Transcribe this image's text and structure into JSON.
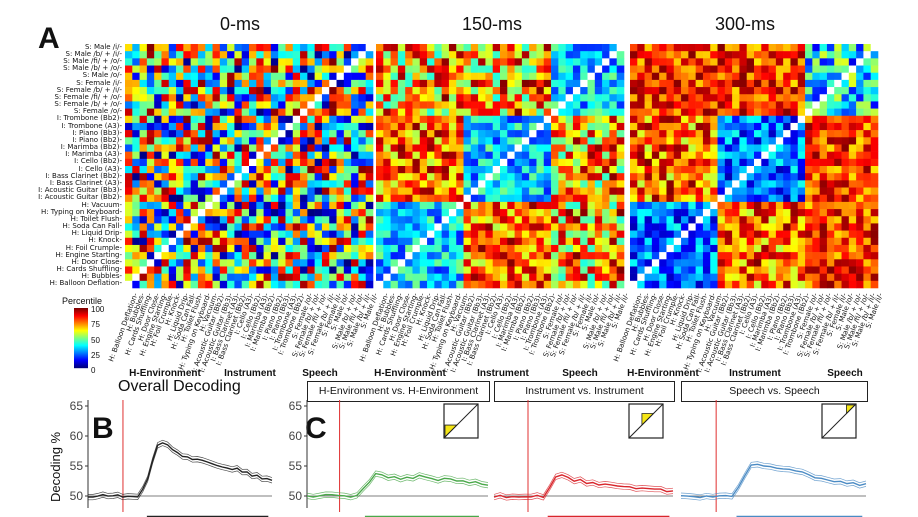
{
  "panel_a_label": "A",
  "panel_b_label": "B",
  "panel_c_label": "C",
  "matrix_titles": [
    "0-ms",
    "150-ms",
    "300-ms"
  ],
  "stimuli": [
    "S: Male /i/-",
    "S: Male /b/ + /i/-",
    "S: Male /fi/ + /o/-",
    "S: Male /b/ + /o/-",
    "S: Male /o/-",
    "S: Female /i/-",
    "S: Female /b/ + /i/-",
    "S: Female /fi/ + /o/-",
    "S: Female /b/ + /o/-",
    "S: Female /o/-",
    "I: Trombone (Bb2)-",
    "I: Trombone (A3)-",
    "I: Piano (Bb3)-",
    "I: Piano (Bb2)-",
    "I: Marimba (Bb2)-",
    "I: Marimba (A3)-",
    "I: Cello (Bb2)-",
    "I: Cello (A3)-",
    "I: Bass Clarinet (Bb2)-",
    "I: Bass Clarinet (A3)-",
    "I: Acoustic Guitar (Bb3)-",
    "I: Acoustic Guitar (Bb2)-",
    "H: Vacuum-",
    "H: Typing on Keyboard-",
    "H: Toilet Flush-",
    "H: Soda Can Fall-",
    "H: Liquid Drip-",
    "H: Knock-",
    "H: Foil Crumple-",
    "H: Engine Starting-",
    "H: Door Close-",
    "H: Cards Shuffling-",
    "H: Bubbles-",
    "H: Balloon Deflation-"
  ],
  "categories": [
    "H-Environment",
    "Instrument",
    "Speech"
  ],
  "legend": {
    "title": "Percentile",
    "ticks": [
      "100",
      "75",
      "50",
      "25",
      "0"
    ]
  },
  "overall_title": "Overall Decoding",
  "y_axis_label": "Decoding %",
  "subplot_titles": [
    "H-Environment vs. H-Environment",
    "Instrument vs. Instrument",
    "Speech vs. Speech"
  ],
  "colors": {
    "overall": "#222222",
    "henv": "#4aa84a",
    "instrument": "#d8262c",
    "speech": "#4b8bc4",
    "onset": "#e03030",
    "triangle": "#f5e616"
  },
  "chart_data": [
    {
      "type": "heatmap",
      "panels": [
        "0-ms",
        "150-ms",
        "300-ms"
      ],
      "description_axis": "stimulus x stimulus dissimilarity percentile",
      "colorbar_range": [
        0,
        100
      ],
      "groups": [
        {
          "name": "H-Environment",
          "count": 12
        },
        {
          "name": "Instrument",
          "count": 12
        },
        {
          "name": "Speech",
          "count": 10
        }
      ]
    },
    {
      "type": "line",
      "panel": "B",
      "title": "Overall Decoding",
      "ylabel": "Decoding %",
      "ylim": [
        48,
        66
      ],
      "yticks": [
        50,
        55,
        60,
        65
      ],
      "series": [
        {
          "values": [
            50,
            50,
            50,
            50,
            50,
            50,
            50,
            50,
            50,
            50,
            50,
            51,
            53,
            56,
            58.5,
            59,
            58.5,
            57.5,
            57,
            56.5,
            56.5,
            56,
            56,
            55.8,
            55.5,
            55.5,
            55,
            55,
            54.8,
            54.5,
            54.5,
            54,
            53.8,
            53.5,
            53.5,
            53,
            52.8,
            52.5
          ]
        }
      ]
    },
    {
      "type": "line",
      "panel": "C",
      "ylim": [
        48,
        66
      ],
      "yticks": [
        50,
        55,
        60,
        65
      ],
      "series": [
        {
          "name": "H-Environment vs. H-Environment",
          "values": [
            50,
            50,
            50,
            50,
            50,
            50,
            50,
            50,
            50,
            51,
            52.5,
            53.5,
            53.5,
            53,
            53.2,
            53,
            53.3,
            53,
            53.2,
            53,
            53,
            52.8,
            52.8,
            52.6,
            52.5,
            52.5,
            52.3,
            52.2,
            52,
            52
          ]
        },
        {
          "name": "Instrument vs. Instrument",
          "values": [
            50,
            50,
            50,
            50,
            50,
            50,
            50,
            50,
            50,
            51.5,
            53,
            53.5,
            53.2,
            52.5,
            52.5,
            52.3,
            52,
            51.8,
            51.8,
            51.7,
            51.5,
            51.5,
            51.3,
            51.2,
            51.2,
            51,
            51,
            51,
            50.9,
            50.8
          ]
        },
        {
          "name": "Speech vs. Speech",
          "values": [
            50,
            50,
            50,
            50,
            50,
            50,
            50,
            50,
            50,
            51.5,
            53.5,
            55,
            55.5,
            55,
            55,
            54.5,
            54.5,
            54.2,
            54,
            53.8,
            53.5,
            53.2,
            53,
            52.8,
            52.6,
            52.4,
            52.2,
            52,
            51.9,
            51.8
          ]
        }
      ]
    }
  ]
}
